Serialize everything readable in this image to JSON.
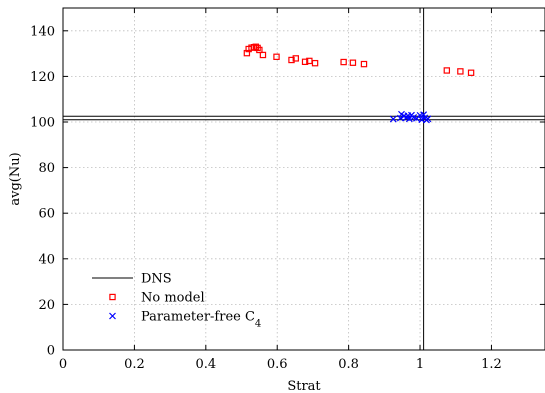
{
  "chart_data": {
    "type": "scatter",
    "xlabel": "Strat",
    "ylabel": "avg(Nu)",
    "xlim": [
      0,
      1.35
    ],
    "ylim": [
      0,
      150
    ],
    "xticks": [
      0,
      0.2,
      0.4,
      0.6,
      0.8,
      1,
      1.2
    ],
    "xtick_labels": [
      "0",
      "0.2",
      "0.4",
      "0.6",
      "0.8",
      "1",
      "1.2"
    ],
    "yticks": [
      0,
      20,
      40,
      60,
      80,
      100,
      120,
      140
    ],
    "ytick_labels": [
      "0",
      "20",
      "40",
      "60",
      "80",
      "100",
      "120",
      "140"
    ],
    "grid": true,
    "legend_position": "bottom-left",
    "reference_lines": {
      "name": "DNS",
      "color": "#000000",
      "x": 1.01,
      "y": [
        101.0,
        102.5
      ]
    },
    "series": [
      {
        "name": "No model",
        "marker": "square",
        "color": "#ff0000",
        "points": [
          [
            0.515,
            130.2
          ],
          [
            0.52,
            132.0
          ],
          [
            0.528,
            132.6
          ],
          [
            0.535,
            132.8
          ],
          [
            0.54,
            133.0
          ],
          [
            0.545,
            132.5
          ],
          [
            0.55,
            131.6
          ],
          [
            0.56,
            129.4
          ],
          [
            0.598,
            128.6
          ],
          [
            0.64,
            127.2
          ],
          [
            0.652,
            127.9
          ],
          [
            0.678,
            126.4
          ],
          [
            0.69,
            126.8
          ],
          [
            0.706,
            125.8
          ],
          [
            0.786,
            126.3
          ],
          [
            0.812,
            126.0
          ],
          [
            0.843,
            125.4
          ],
          [
            1.075,
            122.6
          ],
          [
            1.113,
            122.2
          ],
          [
            1.143,
            121.6
          ]
        ]
      },
      {
        "name": "Parameter-free C",
        "name_subscript": "4",
        "marker": "x",
        "color": "#0000ff",
        "points": [
          [
            0.925,
            101.3
          ],
          [
            0.945,
            101.7
          ],
          [
            0.948,
            103.4
          ],
          [
            0.955,
            102.6
          ],
          [
            0.962,
            101.9
          ],
          [
            0.966,
            102.8
          ],
          [
            0.97,
            101.4
          ],
          [
            0.976,
            103.0
          ],
          [
            0.982,
            102.0
          ],
          [
            0.99,
            101.6
          ],
          [
            1.0,
            102.9
          ],
          [
            1.005,
            101.0
          ],
          [
            1.01,
            103.2
          ],
          [
            1.013,
            101.8
          ],
          [
            1.018,
            100.9
          ],
          [
            1.022,
            101.4
          ]
        ]
      }
    ]
  }
}
